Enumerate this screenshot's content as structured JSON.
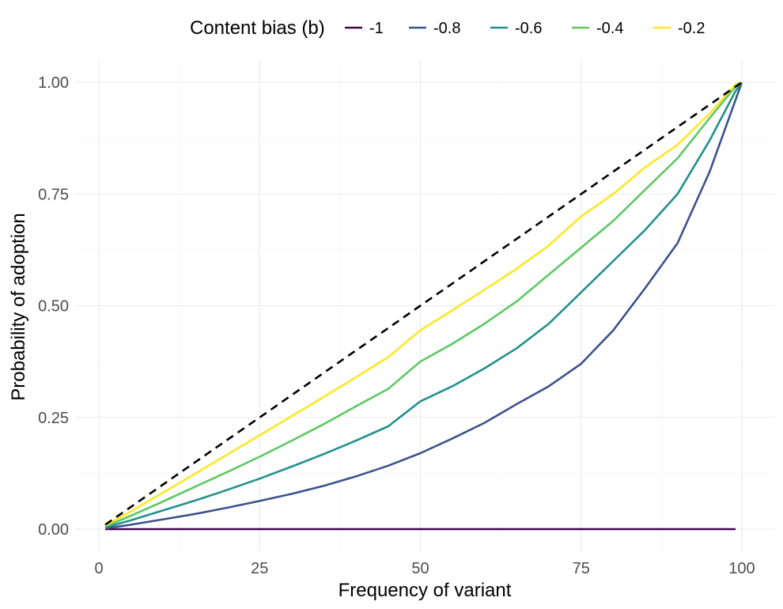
{
  "chart_data": {
    "type": "line",
    "title": "",
    "xlabel": "Frequency of variant",
    "ylabel": "Probability of adoption",
    "xlim": [
      0,
      100
    ],
    "ylim": [
      0,
      1
    ],
    "xticks": [
      0,
      25,
      50,
      75,
      100
    ],
    "xtick_labels": [
      "0",
      "25",
      "50",
      "75",
      "100"
    ],
    "yticks": [
      0,
      0.25,
      0.5,
      0.75,
      1
    ],
    "ytick_labels": [
      "0.00",
      "0.25",
      "0.50",
      "0.75",
      "1.00"
    ],
    "grid": true,
    "legend": {
      "title": "Content bias (b)",
      "position": "top"
    },
    "x": [
      1,
      5,
      10,
      15,
      20,
      25,
      30,
      35,
      40,
      45,
      50,
      55,
      60,
      65,
      70,
      75,
      80,
      85,
      90,
      95,
      99,
      100
    ],
    "series": [
      {
        "name": "-1",
        "color": "#440154",
        "values": [
          0,
          0,
          0,
          0,
          0,
          0,
          0,
          0,
          0,
          0,
          0,
          0,
          0,
          0,
          0,
          0,
          0,
          0,
          0,
          0,
          0,
          null
        ]
      },
      {
        "name": "-0.8",
        "color": "#3B528B",
        "values": [
          0.002,
          0.01,
          0.022,
          0.034,
          0.048,
          0.063,
          0.079,
          0.097,
          0.118,
          0.142,
          0.17,
          0.203,
          0.238,
          0.28,
          0.32,
          0.37,
          0.445,
          0.54,
          0.64,
          0.8,
          0.96,
          1.0
        ]
      },
      {
        "name": "-0.6",
        "color": "#21908C",
        "values": [
          0.004,
          0.02,
          0.042,
          0.064,
          0.088,
          0.113,
          0.14,
          0.168,
          0.198,
          0.23,
          0.286,
          0.32,
          0.36,
          0.405,
          0.46,
          0.53,
          0.6,
          0.67,
          0.75,
          0.87,
          0.98,
          1.0
        ]
      },
      {
        "name": "-0.4",
        "color": "#5DC863",
        "values": [
          0.006,
          0.03,
          0.062,
          0.095,
          0.128,
          0.162,
          0.198,
          0.235,
          0.275,
          0.314,
          0.375,
          0.415,
          0.46,
          0.51,
          0.57,
          0.63,
          0.69,
          0.76,
          0.83,
          0.92,
          0.99,
          1.0
        ]
      },
      {
        "name": "-0.2",
        "color": "#FDE725",
        "values": [
          0.008,
          0.04,
          0.082,
          0.124,
          0.167,
          0.21,
          0.253,
          0.296,
          0.34,
          0.385,
          0.445,
          0.49,
          0.536,
          0.583,
          0.635,
          0.7,
          0.75,
          0.81,
          0.86,
          0.93,
          0.995,
          1.0
        ]
      },
      {
        "name": "",
        "color": "#000000",
        "dashed": true,
        "values": [
          0.01,
          0.05,
          0.1,
          0.15,
          0.2,
          0.25,
          0.3,
          0.35,
          0.4,
          0.45,
          0.5,
          0.55,
          0.6,
          0.65,
          0.7,
          0.75,
          0.8,
          0.85,
          0.9,
          0.95,
          0.99,
          1.0
        ]
      }
    ]
  }
}
